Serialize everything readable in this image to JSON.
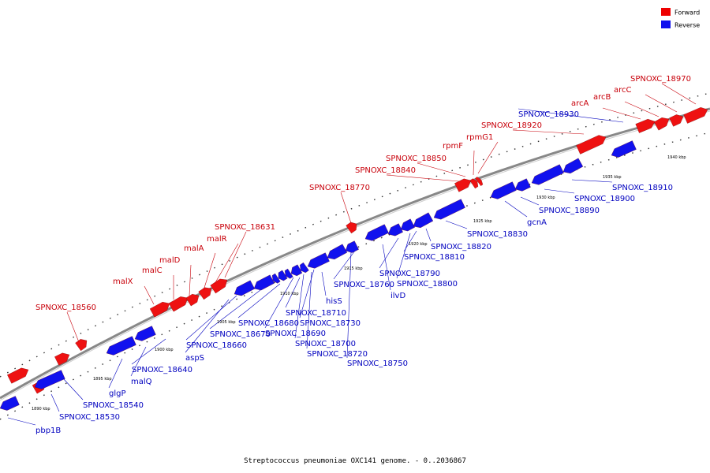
{
  "legend": {
    "forward": {
      "label": "Forward",
      "color": "#ee0000"
    },
    "reverse": {
      "label": "Reverse",
      "color": "#1010ee"
    }
  },
  "caption": "Streptococcus pneumoniae OXC141 genome. - 0..2036867",
  "colors": {
    "forward_fill": "#ee1111",
    "reverse_fill": "#1111ee",
    "forward_text": "#c8000a",
    "reverse_text": "#0000bf",
    "backbone": "#888888"
  },
  "ticks": [
    "1890 kbp",
    "1895 kbp",
    "1900 kbp",
    "1905 kbp",
    "1910 kbp",
    "1915 kbp",
    "1920 kbp",
    "1925 kbp",
    "1930 kbp",
    "1935 kbp",
    "1940 kbp"
  ],
  "forward_genes": [
    "SPNOXC_18560",
    "malX",
    "malC",
    "malD",
    "malA",
    "malR",
    "SPNOXC_18631",
    "SPNOXC_18770",
    "SPNOXC_18840",
    "SPNOXC_18850",
    "rpmF",
    "rpmG1",
    "SPNOXC_18920",
    "arcA",
    "arcB",
    "arcC",
    "SPNOXC_18970"
  ],
  "reverse_genes": [
    "pbp1B",
    "SPNOXC_18530",
    "SPNOXC_18540",
    "glgP",
    "malQ",
    "SPNOXC_18640",
    "aspS",
    "SPNOXC_18660",
    "SPNOXC_18670",
    "SPNOXC_18680",
    "SPNOXC_18690",
    "SPNOXC_18700",
    "SPNOXC_18710",
    "SPNOXC_18720",
    "SPNOXC_18730",
    "hisS",
    "SPNOXC_18750",
    "SPNOXC_18760",
    "ilvD",
    "SPNOXC_18790",
    "SPNOXC_18800",
    "SPNOXC_18810",
    "SPNOXC_18820",
    "SPNOXC_18830",
    "gcnA",
    "SPNOXC_18890",
    "SPNOXC_18900",
    "SPNOXC_18910",
    "SPNOXC_18930"
  ]
}
